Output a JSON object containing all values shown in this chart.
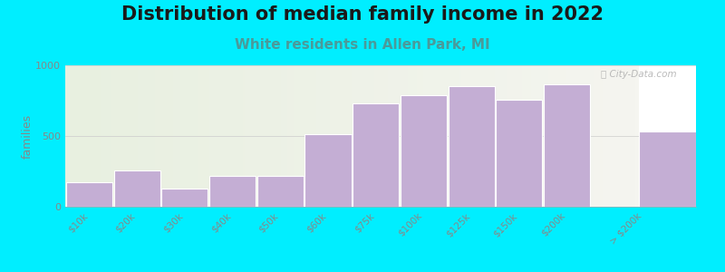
{
  "title": "Distribution of median family income in 2022",
  "subtitle": "White residents in Allen Park, MI",
  "ylabel": "families",
  "categories": [
    "$10k",
    "$20k",
    "$30k",
    "$40k",
    "$50k",
    "$60k",
    "$75k",
    "$100k",
    "$125k",
    "$150k",
    "$200k",
    "> $200k"
  ],
  "values": [
    175,
    255,
    130,
    220,
    215,
    510,
    730,
    790,
    855,
    755,
    865,
    530
  ],
  "bar_color": "#c4aed4",
  "bar_edgecolor": "#ffffff",
  "background_color": "#00eeff",
  "plot_bg_left": "#e8f0e0",
  "plot_bg_right": "#f5f5f0",
  "ylim": [
    0,
    1000
  ],
  "yticks": [
    0,
    500,
    1000
  ],
  "title_fontsize": 15,
  "subtitle_fontsize": 11,
  "subtitle_color": "#4a9a9a",
  "ylabel_color": "#888888",
  "tick_color": "#888888",
  "watermark": "City-Data.com"
}
